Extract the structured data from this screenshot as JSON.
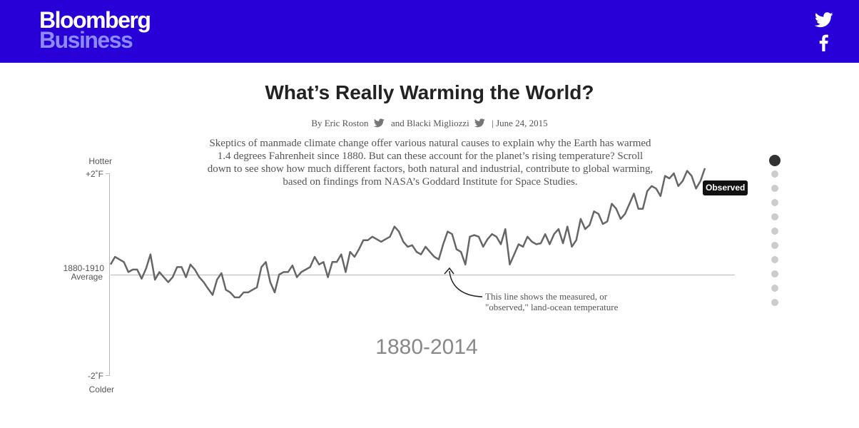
{
  "header": {
    "brand_line1": "Bloomberg",
    "brand_line2": "Business",
    "bg_color": "#2800d7",
    "icons": [
      "twitter-icon",
      "facebook-icon"
    ]
  },
  "article": {
    "title": "What’s Really Warming the World?",
    "byline_by": "By Eric Roston",
    "byline_and": "and Blacki Migliozzi",
    "byline_date": "| June 24, 2015",
    "intro": "Skeptics of manmade climate change offer various natural causes to explain why the Earth has warmed 1.4 degrees Fahrenheit since 1880. But can these account for the planet’s rising temperature? Scroll down to see show how much different factors, both natural and industrial, contribute to global warming, based on findings from NASA’s Goddard Institute for Space Studies."
  },
  "chart_data": {
    "type": "line",
    "x_range": [
      1880,
      2014
    ],
    "y_range": [
      -2,
      2
    ],
    "y_unit": "°F relative to 1880-1910 average",
    "axis": {
      "top_label": "Hotter",
      "top_tick": "+2˚F",
      "mid_label_1": "1880-1910",
      "mid_label_2": "Average",
      "bottom_tick": "-2˚F",
      "bottom_label": "Colder"
    },
    "period_label": "1880-2014",
    "annotation_line1": "This line shows the measured, or",
    "annotation_line2": "\"observed,\" land-ocean temperature",
    "series": [
      {
        "name": "Observed",
        "color": "#666666",
        "x": [
          1880,
          1881,
          1882,
          1883,
          1884,
          1885,
          1886,
          1887,
          1888,
          1889,
          1890,
          1891,
          1892,
          1893,
          1894,
          1895,
          1896,
          1897,
          1898,
          1899,
          1900,
          1901,
          1902,
          1903,
          1904,
          1905,
          1906,
          1907,
          1908,
          1909,
          1910,
          1911,
          1912,
          1913,
          1914,
          1915,
          1916,
          1917,
          1918,
          1919,
          1920,
          1921,
          1922,
          1923,
          1924,
          1925,
          1926,
          1927,
          1928,
          1929,
          1930,
          1931,
          1932,
          1933,
          1934,
          1935,
          1936,
          1937,
          1938,
          1939,
          1940,
          1941,
          1942,
          1943,
          1944,
          1945,
          1946,
          1947,
          1948,
          1949,
          1950,
          1951,
          1952,
          1953,
          1954,
          1955,
          1956,
          1957,
          1958,
          1959,
          1960,
          1961,
          1962,
          1963,
          1964,
          1965,
          1966,
          1967,
          1968,
          1969,
          1970,
          1971,
          1972,
          1973,
          1974,
          1975,
          1976,
          1977,
          1978,
          1979,
          1980,
          1981,
          1982,
          1983,
          1984,
          1985,
          1986,
          1987,
          1988,
          1989,
          1990,
          1991,
          1992,
          1993,
          1994,
          1995,
          1996,
          1997,
          1998,
          1999,
          2000,
          2001,
          2002,
          2003,
          2004,
          2005,
          2006,
          2007,
          2008,
          2009,
          2010,
          2011,
          2012,
          2013,
          2014
        ],
        "values": [
          0.2,
          0.35,
          0.3,
          0.25,
          0.05,
          0.1,
          0.1,
          -0.08,
          0.12,
          0.4,
          -0.1,
          0.05,
          -0.05,
          -0.15,
          -0.05,
          0.15,
          0.15,
          -0.05,
          0.2,
          0.1,
          -0.05,
          -0.15,
          -0.28,
          -0.4,
          -0.1,
          0.03,
          -0.3,
          -0.35,
          -0.45,
          -0.45,
          -0.35,
          -0.35,
          -0.3,
          -0.25,
          0.15,
          0.25,
          -0.15,
          -0.35,
          0.0,
          0.05,
          0.05,
          0.18,
          -0.05,
          0.05,
          0.1,
          0.15,
          0.35,
          0.2,
          0.25,
          -0.05,
          0.25,
          0.25,
          0.4,
          0.05,
          0.45,
          0.35,
          0.5,
          0.68,
          0.68,
          0.75,
          0.7,
          0.65,
          0.7,
          0.75,
          0.95,
          0.85,
          0.65,
          0.55,
          0.58,
          0.45,
          0.4,
          0.55,
          0.45,
          0.35,
          0.3,
          0.6,
          0.85,
          0.8,
          0.5,
          0.45,
          0.2,
          0.75,
          0.78,
          0.75,
          0.55,
          0.7,
          0.8,
          0.75,
          0.6,
          0.9,
          0.2,
          0.4,
          0.6,
          0.55,
          0.75,
          0.65,
          0.6,
          0.62,
          0.8,
          0.6,
          0.8,
          0.9,
          0.62,
          0.95,
          0.55,
          0.68,
          1.1,
          0.9,
          0.98,
          1.25,
          1.2,
          1.0,
          1.05,
          1.4,
          1.3,
          1.1,
          1.2,
          1.4,
          1.6,
          1.3,
          1.3,
          1.65,
          1.75,
          1.7,
          1.55,
          1.95,
          1.9,
          2.0,
          1.75,
          1.85,
          2.05,
          1.95,
          1.7,
          1.85,
          2.1
        ]
      }
    ],
    "series_label": "Observed",
    "label_bg_color": "#111111"
  },
  "nav": {
    "dot_count": 11,
    "active_index": 0,
    "active_color": "#333333",
    "inactive_color": "#cccccc"
  }
}
